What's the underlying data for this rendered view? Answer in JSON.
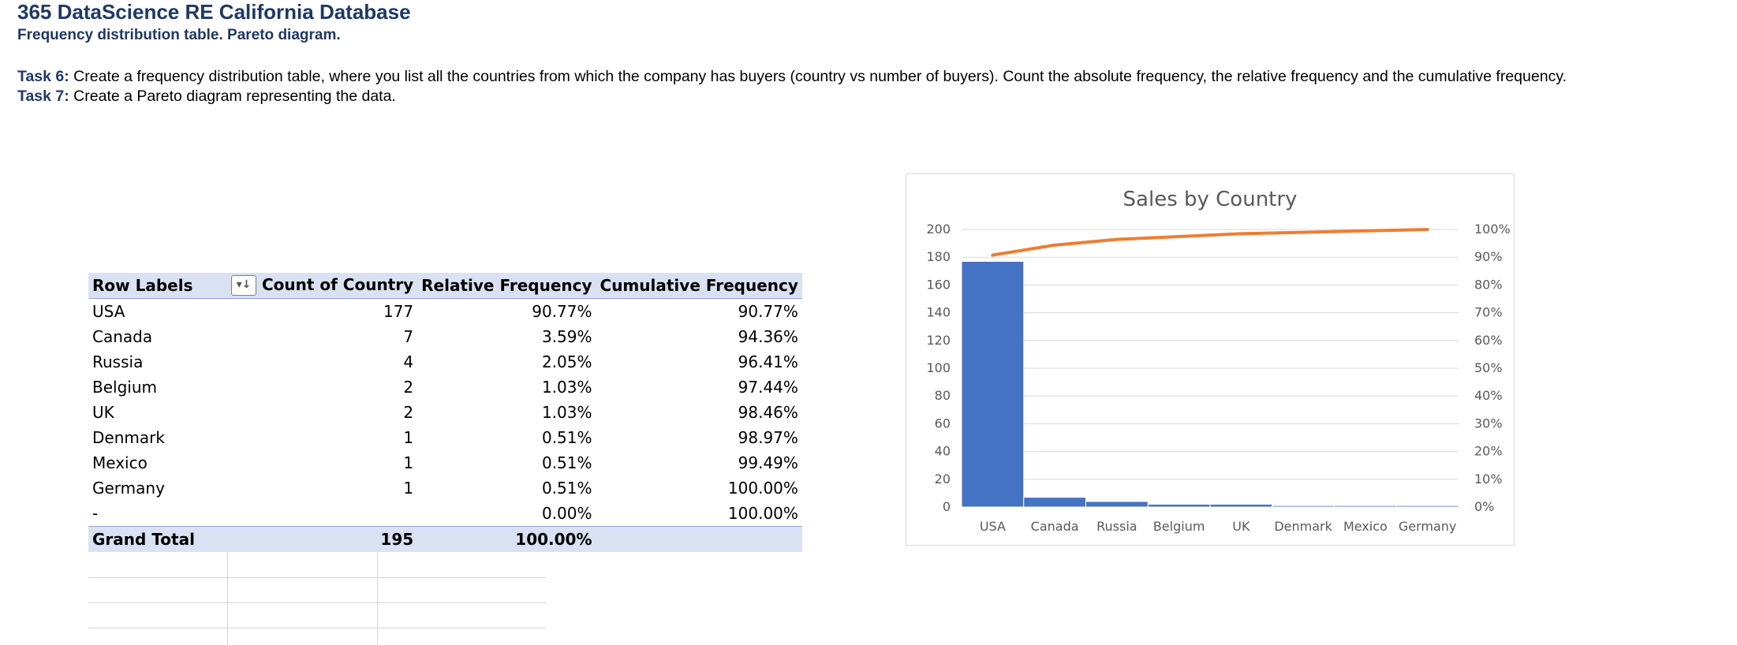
{
  "header": {
    "title": "365 DataScience RE California Database",
    "subtitle": "Frequency distribution table. Pareto diagram."
  },
  "tasks": [
    {
      "label": "Task 6:",
      "text": " Create a frequency distribution table, where you list all the countries from which the company has buyers (country vs number of buyers). Count the absolute frequency, the relative frequency and the cumulative frequency."
    },
    {
      "label": "Task 7:",
      "text": " Create a Pareto diagram representing the data."
    }
  ],
  "pivot": {
    "headers": [
      "Row Labels",
      "Count of Country",
      "Relative Frequency",
      "Cumulative Frequency"
    ],
    "rows": [
      [
        "USA",
        "177",
        "90.77%",
        "90.77%"
      ],
      [
        "Canada",
        "7",
        "3.59%",
        "94.36%"
      ],
      [
        "Russia",
        "4",
        "2.05%",
        "96.41%"
      ],
      [
        "Belgium",
        "2",
        "1.03%",
        "97.44%"
      ],
      [
        "UK",
        "2",
        "1.03%",
        "98.46%"
      ],
      [
        "Denmark",
        "1",
        "0.51%",
        "98.97%"
      ],
      [
        "Mexico",
        "1",
        "0.51%",
        "99.49%"
      ],
      [
        "Germany",
        "1",
        "0.51%",
        "100.00%"
      ],
      [
        "-",
        "",
        "0.00%",
        "100.00%"
      ]
    ],
    "total": [
      "Grand Total",
      "195",
      "100.00%",
      ""
    ]
  },
  "chart_data": {
    "type": "bar",
    "title": "Sales by Country",
    "categories": [
      "USA",
      "Canada",
      "Russia",
      "Belgium",
      "UK",
      "Denmark",
      "Mexico",
      "Germany"
    ],
    "series": [
      {
        "values": [
          177,
          7,
          4,
          2,
          2,
          1,
          1,
          1
        ],
        "color": "#4472c4",
        "axis": "left",
        "kind": "bar"
      },
      {
        "values": [
          90.77,
          94.36,
          96.41,
          97.44,
          98.46,
          98.97,
          99.49,
          100.0
        ],
        "color": "#ed7d31",
        "axis": "right",
        "kind": "line"
      }
    ],
    "ylim": [
      0,
      200
    ],
    "yticks": [
      "0",
      "20",
      "40",
      "60",
      "80",
      "100",
      "120",
      "140",
      "160",
      "180",
      "200"
    ],
    "y2lim": [
      0,
      100
    ],
    "y2ticks": [
      "0%",
      "10%",
      "20%",
      "30%",
      "40%",
      "50%",
      "60%",
      "70%",
      "80%",
      "90%",
      "100%"
    ],
    "grid": true
  }
}
